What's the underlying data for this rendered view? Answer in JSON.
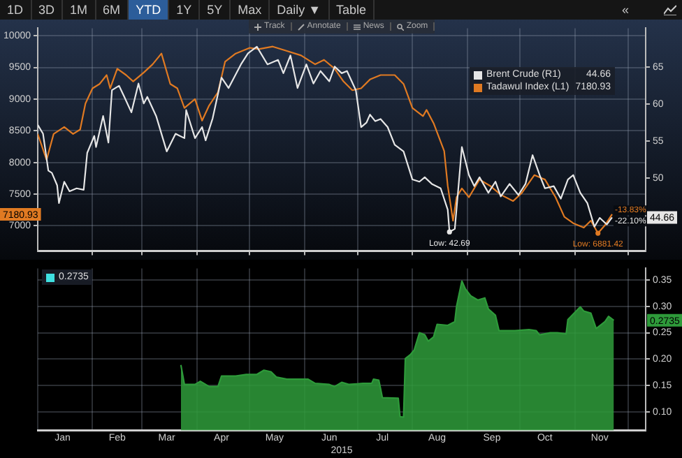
{
  "chart_data": [
    {
      "type": "line",
      "xlim": [
        "2015-01-01",
        "2015-12-11"
      ],
      "xticks": [
        {
          "value": "2015-02-01",
          "label": null
        },
        {
          "value": "2015-03-01",
          "label": null
        },
        {
          "value": "2015-04-01",
          "label": null
        },
        {
          "value": "2015-05-01",
          "label": null
        },
        {
          "value": "2015-06-01",
          "label": null
        },
        {
          "value": "2015-07-01",
          "label": null
        },
        {
          "value": "2015-08-01",
          "label": null
        },
        {
          "value": "2015-09-01",
          "label": null
        },
        {
          "value": "2015-10-01",
          "label": null
        },
        {
          "value": "2015-11-01",
          "label": null
        },
        {
          "value": "2015-12-01",
          "label": null
        }
      ],
      "ylim": [
        6600,
        10120
      ],
      "yticks": [
        7000,
        7500,
        8000,
        8500,
        9000,
        9500,
        10000
      ],
      "y2lim": [
        40.1,
        70.3
      ],
      "y2ticks": [
        50,
        55,
        60,
        65
      ],
      "tick_labels": "y",
      "grid": true,
      "legend": "top right",
      "marker": "none",
      "series": [
        {
          "name": "Brent Crude (R1)",
          "color": "#e6e6e6",
          "axis": "y2",
          "x": [
            "2015-01-01",
            "2015-01-04",
            "2015-01-07",
            "2015-01-09",
            "2015-01-12",
            "2015-01-13",
            "2015-01-16",
            "2015-01-19",
            "2015-01-23",
            "2015-01-27",
            "2015-01-29",
            "2015-02-02",
            "2015-02-03",
            "2015-02-07",
            "2015-02-10",
            "2015-02-12",
            "2015-02-16",
            "2015-02-19",
            "2015-02-23",
            "2015-02-27",
            "2015-03-02",
            "2015-03-04",
            "2015-03-09",
            "2015-03-15",
            "2015-03-20",
            "2015-03-25",
            "2015-03-26",
            "2015-03-31",
            "2015-04-04",
            "2015-04-06",
            "2015-04-10",
            "2015-04-15",
            "2015-04-19",
            "2015-04-26",
            "2015-04-30",
            "2015-05-05",
            "2015-05-11",
            "2015-05-17",
            "2015-05-20",
            "2015-05-24",
            "2015-05-28",
            "2015-06-02",
            "2015-06-06",
            "2015-06-10",
            "2015-06-15",
            "2015-06-18",
            "2015-06-22",
            "2015-06-25",
            "2015-06-30",
            "2015-07-03",
            "2015-07-06",
            "2015-07-08",
            "2015-07-11",
            "2015-07-14",
            "2015-07-18",
            "2015-07-22",
            "2015-07-27",
            "2015-08-01",
            "2015-08-05",
            "2015-08-08",
            "2015-08-12",
            "2015-08-17",
            "2015-08-21",
            "2015-08-22",
            "2015-08-25",
            "2015-08-27",
            "2015-08-29",
            "2015-09-02",
            "2015-09-05",
            "2015-09-08",
            "2015-09-13",
            "2015-09-17",
            "2015-09-20",
            "2015-09-25",
            "2015-09-30",
            "2015-10-04",
            "2015-10-08",
            "2015-10-12",
            "2015-10-15",
            "2015-10-20",
            "2015-10-24",
            "2015-10-28",
            "2015-10-31",
            "2015-11-04",
            "2015-11-08",
            "2015-11-12",
            "2015-11-15",
            "2015-11-19",
            "2015-11-22"
          ],
          "values": [
            57.2,
            56,
            51,
            50.7,
            49,
            46.6,
            49.5,
            48.2,
            48.6,
            48.4,
            53.4,
            55.7,
            54.2,
            58.4,
            54.8,
            61.9,
            62.5,
            61,
            58.9,
            62.8,
            60.1,
            61,
            58.4,
            53.6,
            56,
            55.4,
            59.2,
            55.4,
            56.9,
            55.1,
            58.1,
            63.6,
            62.2,
            65.4,
            66.9,
            67.8,
            65.4,
            66,
            64.2,
            66.6,
            62.2,
            65.4,
            62.8,
            64.5,
            63.1,
            65.1,
            64.2,
            64.5,
            61.9,
            56.9,
            57.5,
            58.6,
            57.7,
            58,
            56.9,
            54.5,
            53.6,
            49.8,
            49.5,
            50.1,
            49.2,
            48.6,
            45.7,
            42.69,
            43.1,
            48.6,
            54.2,
            50.4,
            48.9,
            50.1,
            48,
            49.5,
            47.5,
            49.2,
            47.7,
            49.2,
            53.1,
            50.4,
            48.6,
            48.9,
            47.2,
            49.8,
            50.4,
            48,
            46.6,
            43.4,
            44.6,
            43.7,
            44.66
          ]
        },
        {
          "name": "Tadawul Index (L1)",
          "color": "#e07a22",
          "x": [
            "2015-01-01",
            "2015-01-06",
            "2015-01-10",
            "2015-01-16",
            "2015-01-21",
            "2015-01-25",
            "2015-01-28",
            "2015-02-01",
            "2015-02-05",
            "2015-02-09",
            "2015-02-11",
            "2015-02-15",
            "2015-02-20",
            "2015-02-24",
            "2015-03-02",
            "2015-03-07",
            "2015-03-12",
            "2015-03-17",
            "2015-03-21",
            "2015-03-25",
            "2015-03-31",
            "2015-04-04",
            "2015-04-08",
            "2015-04-13",
            "2015-04-17",
            "2015-04-23",
            "2015-05-01",
            "2015-05-06",
            "2015-05-14",
            "2015-05-22",
            "2015-05-30",
            "2015-06-07",
            "2015-06-12",
            "2015-06-18",
            "2015-06-23",
            "2015-06-28",
            "2015-07-03",
            "2015-07-08",
            "2015-07-14",
            "2015-07-22",
            "2015-07-27",
            "2015-08-01",
            "2015-08-07",
            "2015-08-09",
            "2015-08-13",
            "2015-08-19",
            "2015-08-21",
            "2015-08-24",
            "2015-08-26",
            "2015-08-29",
            "2015-09-02",
            "2015-09-08",
            "2015-09-14",
            "2015-09-20",
            "2015-09-27",
            "2015-10-02",
            "2015-10-09",
            "2015-10-15",
            "2015-10-21",
            "2015-10-26",
            "2015-10-31",
            "2015-11-06",
            "2015-11-10",
            "2015-11-14",
            "2015-11-18",
            "2015-11-22"
          ],
          "values": [
            8450,
            8040,
            8450,
            8560,
            8450,
            8520,
            8930,
            9170,
            9240,
            9380,
            9170,
            9480,
            9380,
            9280,
            9420,
            9550,
            9720,
            9240,
            9170,
            8860,
            9000,
            8660,
            8900,
            9110,
            9590,
            9720,
            9810,
            9790,
            9830,
            9760,
            9690,
            9550,
            9620,
            9480,
            9280,
            9140,
            9170,
            9310,
            9380,
            9380,
            9240,
            8860,
            8730,
            8830,
            8620,
            8180,
            7630,
            7080,
            7450,
            7590,
            7450,
            7730,
            7630,
            7490,
            7390,
            7520,
            7800,
            7730,
            7450,
            7140,
            7040,
            6970,
            7080,
            6881.42,
            7010,
            7180.93
          ]
        }
      ],
      "annotations": [
        "1D",
        "3D",
        "1M",
        "6M",
        "YTD",
        "1Y",
        "5Y",
        "Max",
        "Daily ▼",
        "Table",
        "«",
        "Track",
        "Annotate",
        "News",
        "Zoom",
        {
          "text": "Low: 42.69",
          "x": "2015-08-22",
          "y": 6902
        },
        {
          "text": "Low: 6881.42",
          "x": "2015-11-14",
          "y": 6881.42
        },
        {
          "text": "-13.83%",
          "x": "2015-11-22",
          "y": 7180.93
        },
        {
          "text": "-22.10%",
          "x": "2015-11-22",
          "y": 7131
        },
        "44.66",
        "7180.93"
      ]
    },
    {
      "type": "area",
      "xlim": [
        "2015-01-01",
        "2015-12-11"
      ],
      "xlabel": "2015",
      "xticks": [
        {
          "value": "2015-01-01",
          "label": null
        },
        {
          "value": "2015-01-15",
          "label": "Jan"
        },
        {
          "value": "2015-02-01",
          "label": null
        },
        {
          "value": "2015-02-15",
          "label": "Feb"
        },
        {
          "value": "2015-03-01",
          "label": null
        },
        {
          "value": "2015-03-15",
          "label": "Mar"
        },
        {
          "value": "2015-04-01",
          "label": null
        },
        {
          "value": "2015-04-15",
          "label": "Apr"
        },
        {
          "value": "2015-05-01",
          "label": null
        },
        {
          "value": "2015-05-15",
          "label": "May"
        },
        {
          "value": "2015-06-01",
          "label": null
        },
        {
          "value": "2015-06-15",
          "label": "Jun"
        },
        {
          "value": "2015-07-01",
          "label": null
        },
        {
          "value": "2015-07-15",
          "label": "Jul"
        },
        {
          "value": "2015-08-01",
          "label": null
        },
        {
          "value": "2015-08-15",
          "label": "Aug"
        },
        {
          "value": "2015-09-01",
          "label": null
        },
        {
          "value": "2015-09-15",
          "label": "Sep"
        },
        {
          "value": "2015-10-01",
          "label": null
        },
        {
          "value": "2015-10-15",
          "label": "Oct"
        },
        {
          "value": "2015-11-01",
          "label": null
        },
        {
          "value": "2015-11-15",
          "label": "Nov"
        },
        {
          "value": "2015-12-01",
          "label": null
        }
      ],
      "y2lim": [
        0.065,
        0.372
      ],
      "y2ticks": [
        {
          "value": 0.1,
          "label": "0.10"
        },
        0.15,
        {
          "value": 0.2,
          "label": "0.20"
        },
        0.25,
        {
          "value": 0.3,
          "label": "0.30"
        },
        0.35
      ],
      "grid": true,
      "marker": "none",
      "series": [
        {
          "color": "#2e9a3a",
          "axis": "y2",
          "x": [
            "2015-03-23",
            "2015-03-25",
            "2015-03-31",
            "2015-04-03",
            "2015-04-08",
            "2015-04-13",
            "2015-04-15",
            "2015-04-23",
            "2015-04-29",
            "2015-05-05",
            "2015-05-09",
            "2015-05-13",
            "2015-05-16",
            "2015-05-22",
            "2015-06-03",
            "2015-06-07",
            "2015-06-15",
            "2015-06-18",
            "2015-06-22",
            "2015-06-26",
            "2015-07-04",
            "2015-07-09",
            "2015-07-10",
            "2015-07-13",
            "2015-07-14",
            "2015-07-15",
            "2015-07-24",
            "2015-07-25",
            "2015-07-27",
            "2015-07-28",
            "2015-07-31",
            "2015-08-02",
            "2015-08-05",
            "2015-08-08",
            "2015-08-10",
            "2015-08-13",
            "2015-08-15",
            "2015-08-21",
            "2015-08-25",
            "2015-08-26",
            "2015-08-29",
            "2015-08-31",
            "2015-09-03",
            "2015-09-07",
            "2015-09-11",
            "2015-09-13",
            "2015-09-17",
            "2015-09-19",
            "2015-09-28",
            "2015-10-06",
            "2015-10-10",
            "2015-10-12",
            "2015-10-18",
            "2015-10-22",
            "2015-10-27",
            "2015-10-28",
            "2015-11-04",
            "2015-11-06",
            "2015-11-10",
            "2015-11-13",
            "2015-11-18",
            "2015-11-20",
            "2015-11-23"
          ],
          "values": [
            0.189,
            0.152,
            0.152,
            0.158,
            0.148,
            0.148,
            0.168,
            0.168,
            0.171,
            0.171,
            0.179,
            0.176,
            0.166,
            0.162,
            0.162,
            0.154,
            0.152,
            0.148,
            0.156,
            0.152,
            0.154,
            0.154,
            0.162,
            0.16,
            0.144,
            0.127,
            0.126,
            0.091,
            0.09,
            0.201,
            0.209,
            0.217,
            0.25,
            0.246,
            0.234,
            0.242,
            0.266,
            0.264,
            0.271,
            0.3,
            0.348,
            0.333,
            0.32,
            0.312,
            0.316,
            0.295,
            0.283,
            0.254,
            0.254,
            0.256,
            0.254,
            0.246,
            0.25,
            0.25,
            0.248,
            0.275,
            0.299,
            0.291,
            0.287,
            0.258,
            0.271,
            0.281,
            0.2735
          ]
        }
      ],
      "annotations": [
        "0.2735"
      ]
    }
  ]
}
